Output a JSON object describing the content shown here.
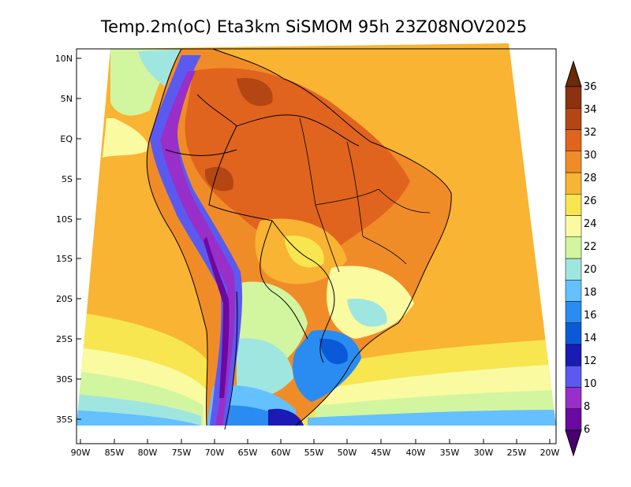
{
  "title": "Temp.2m(oC) Eta3km SiSMOM 95h 23Z08NOV2025",
  "lat_labels": [
    "10N",
    "5N",
    "EQ",
    "5S",
    "10S",
    "15S",
    "20S",
    "25S",
    "30S",
    "35S"
  ],
  "lon_labels": [
    "90W",
    "85W",
    "80W",
    "75W",
    "70W",
    "65W",
    "60W",
    "55W",
    "50W",
    "45W",
    "40W",
    "35W",
    "30W",
    "25W",
    "20W"
  ],
  "colorbar": {
    "labels": [
      "6",
      "8",
      "10",
      "12",
      "14",
      "16",
      "18",
      "20",
      "22",
      "24",
      "26",
      "28",
      "30",
      "32",
      "34",
      "36"
    ],
    "colors": [
      "#6a0aa0",
      "#9a2ec8",
      "#5a5af0",
      "#1a1ab4",
      "#0a5ad8",
      "#2a8cf0",
      "#64c0ff",
      "#a0e6e0",
      "#d2f5a0",
      "#fafaa0",
      "#f8e650",
      "#f8b432",
      "#f08c28",
      "#e0641e",
      "#b44614",
      "#8c3210"
    ]
  }
}
